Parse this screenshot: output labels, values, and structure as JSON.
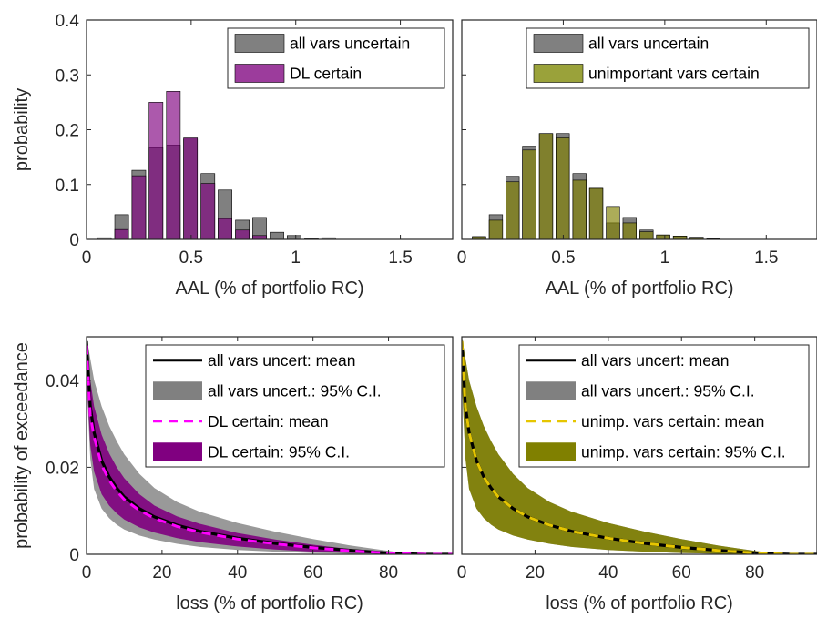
{
  "colors": {
    "gray": "#808080",
    "gray_ci": "#9a9a9a",
    "purple": "#800080",
    "purple_legend": "#9c3c9c",
    "magenta": "#ff00ff",
    "olive": "#808000",
    "olive_legend": "#9aa23a",
    "yellow": "#e6c600",
    "black": "#000000"
  },
  "chart_data": [
    {
      "type": "bar",
      "panel": "top-left",
      "ylabel": "probability",
      "xlabel": "AAL (% of portfolio RC)",
      "xlim": [
        0,
        1.75
      ],
      "ylim": [
        0,
        0.4
      ],
      "xticks": [
        0,
        0.5,
        1,
        1.5
      ],
      "xtick_labels": [
        "0",
        "0.5",
        "1",
        "1.5"
      ],
      "yticks": [
        0,
        0.1,
        0.2,
        0.3,
        0.4
      ],
      "ytick_labels": [
        "0",
        "0.1",
        "0.2",
        "0.3",
        "0.4"
      ],
      "bin_width": 0.066,
      "bin_centers": [
        0.085,
        0.168,
        0.25,
        0.332,
        0.415,
        0.497,
        0.58,
        0.662,
        0.745,
        0.827,
        0.91,
        0.992,
        1.075,
        1.157,
        1.24
      ],
      "series": [
        {
          "name": "all vars uncertain",
          "color": "#808080",
          "values": [
            0.003,
            0.045,
            0.126,
            0.167,
            0.172,
            0.183,
            0.12,
            0.09,
            0.035,
            0.04,
            0.013,
            0.007,
            0.001,
            0.003,
            0.0
          ]
        },
        {
          "name": "DL certain",
          "color": "#800080",
          "values": [
            0.0,
            0.018,
            0.116,
            0.25,
            0.27,
            0.185,
            0.102,
            0.038,
            0.017,
            0.007,
            0.0,
            0.0,
            0.0,
            0.0,
            0.0
          ]
        }
      ],
      "legend": {
        "position": "top-right"
      }
    },
    {
      "type": "bar",
      "panel": "top-right",
      "xlabel": "AAL (% of portfolio RC)",
      "xlim": [
        0,
        1.75
      ],
      "ylim": [
        0,
        0.4
      ],
      "xticks": [
        0,
        0.5,
        1,
        1.5
      ],
      "xtick_labels": [
        "0",
        "0.5",
        "1",
        "1.5"
      ],
      "bin_width": 0.066,
      "bin_centers": [
        0.085,
        0.168,
        0.25,
        0.332,
        0.415,
        0.497,
        0.58,
        0.662,
        0.745,
        0.827,
        0.91,
        0.992,
        1.075,
        1.157,
        1.24
      ],
      "series": [
        {
          "name": "all vars uncertain",
          "color": "#808080",
          "values": [
            0.005,
            0.045,
            0.115,
            0.17,
            0.193,
            0.193,
            0.12,
            0.093,
            0.03,
            0.04,
            0.017,
            0.008,
            0.006,
            0.004,
            0.001
          ]
        },
        {
          "name": "unimportant vars certain",
          "color": "#808000",
          "values": [
            0.005,
            0.035,
            0.105,
            0.163,
            0.193,
            0.185,
            0.108,
            0.093,
            0.06,
            0.03,
            0.014,
            0.008,
            0.006,
            0.002,
            0.001
          ]
        }
      ],
      "legend": {
        "position": "top-right"
      }
    },
    {
      "type": "area",
      "panel": "bottom-left",
      "ylabel": "probability of exceedance",
      "xlabel": "loss (% of portfolio RC)",
      "xlim": [
        0,
        97
      ],
      "ylim": [
        0,
        0.05
      ],
      "xticks": [
        0,
        20,
        40,
        60,
        80
      ],
      "xtick_labels": [
        "0",
        "20",
        "40",
        "60",
        "80"
      ],
      "yticks": [
        0,
        0.02,
        0.04
      ],
      "ytick_labels": [
        "0",
        "0.02",
        "0.04"
      ],
      "x": [
        0,
        1,
        2,
        4,
        6,
        8,
        10,
        14,
        18,
        24,
        30,
        40,
        50,
        60,
        70,
        80,
        85,
        90,
        97
      ],
      "series": [
        {
          "name": "all vars uncert: mean",
          "kind": "line",
          "color": "#000000",
          "values": [
            0.049,
            0.034,
            0.028,
            0.0215,
            0.0178,
            0.0152,
            0.0132,
            0.0105,
            0.0086,
            0.0067,
            0.0053,
            0.0037,
            0.0025,
            0.0016,
            0.0009,
            0.0003,
            0.0001,
            0.0,
            0.0
          ]
        },
        {
          "name": "all vars uncert.: 95% C.I.",
          "kind": "band",
          "color": "#808080",
          "upper": [
            0.05,
            0.045,
            0.04,
            0.034,
            0.0295,
            0.026,
            0.023,
            0.0185,
            0.0152,
            0.012,
            0.0098,
            0.0072,
            0.0052,
            0.0035,
            0.002,
            0.0008,
            0.0003,
            0.0001,
            0.0
          ],
          "lower": [
            0.04,
            0.022,
            0.015,
            0.0105,
            0.0083,
            0.0068,
            0.0057,
            0.0043,
            0.0034,
            0.0024,
            0.0017,
            0.001,
            0.0006,
            0.0003,
            0.0001,
            0.0,
            0.0,
            0.0,
            0.0
          ]
        },
        {
          "name": "DL certain: mean",
          "kind": "dashed",
          "color": "#ff00ff",
          "values": [
            0.048,
            0.032,
            0.027,
            0.0205,
            0.017,
            0.0145,
            0.0126,
            0.0101,
            0.0083,
            0.0064,
            0.0051,
            0.0035,
            0.0024,
            0.0015,
            0.0008,
            0.0003,
            0.0001,
            0.0,
            0.0
          ]
        },
        {
          "name": "DL certain: 95% C.I.",
          "kind": "band",
          "color": "#800080",
          "upper": [
            0.049,
            0.04,
            0.034,
            0.0275,
            0.0232,
            0.02,
            0.0175,
            0.0138,
            0.0112,
            0.0087,
            0.007,
            0.0049,
            0.0034,
            0.0022,
            0.0012,
            0.0005,
            0.0002,
            0.0001,
            0.0
          ],
          "lower": [
            0.041,
            0.025,
            0.019,
            0.0138,
            0.0112,
            0.0094,
            0.008,
            0.0062,
            0.005,
            0.0037,
            0.0028,
            0.0018,
            0.0011,
            0.0006,
            0.0003,
            0.0001,
            0.0,
            0.0,
            0.0
          ]
        }
      ],
      "legend": {
        "position": "top-right"
      }
    },
    {
      "type": "area",
      "panel": "bottom-right",
      "xlabel": "loss (% of portfolio RC)",
      "xlim": [
        0,
        97
      ],
      "ylim": [
        0,
        0.05
      ],
      "xticks": [
        0,
        20,
        40,
        60,
        80
      ],
      "xtick_labels": [
        "0",
        "20",
        "40",
        "60",
        "80"
      ],
      "x": [
        0,
        1,
        2,
        4,
        6,
        8,
        10,
        14,
        18,
        24,
        30,
        40,
        50,
        60,
        70,
        80,
        85,
        90,
        97
      ],
      "series": [
        {
          "name": "all vars uncert: mean",
          "kind": "line",
          "color": "#000000",
          "values": [
            0.049,
            0.034,
            0.028,
            0.0215,
            0.0178,
            0.0152,
            0.0132,
            0.0105,
            0.0086,
            0.0067,
            0.0053,
            0.0037,
            0.0025,
            0.0016,
            0.0009,
            0.0003,
            0.0001,
            0.0,
            0.0
          ]
        },
        {
          "name": "all vars uncert.: 95% C.I.",
          "kind": "band",
          "color": "#808080",
          "upper": [
            0.05,
            0.045,
            0.04,
            0.034,
            0.0295,
            0.026,
            0.023,
            0.0185,
            0.0152,
            0.012,
            0.0098,
            0.0072,
            0.0052,
            0.0035,
            0.002,
            0.0008,
            0.0003,
            0.0001,
            0.0
          ],
          "lower": [
            0.04,
            0.022,
            0.015,
            0.0105,
            0.0083,
            0.0068,
            0.0057,
            0.0043,
            0.0034,
            0.0024,
            0.0017,
            0.001,
            0.0006,
            0.0003,
            0.0001,
            0.0,
            0.0,
            0.0,
            0.0
          ]
        },
        {
          "name": "unimp. vars certain: mean",
          "kind": "dashed",
          "color": "#e6c600",
          "values": [
            0.049,
            0.034,
            0.028,
            0.0215,
            0.0178,
            0.0152,
            0.0132,
            0.0105,
            0.0086,
            0.0067,
            0.0053,
            0.0037,
            0.0025,
            0.0016,
            0.0009,
            0.0003,
            0.0001,
            0.0,
            0.0
          ]
        },
        {
          "name": "unimp. vars certain: 95% C.I.",
          "kind": "band",
          "color": "#808000",
          "upper": [
            0.05,
            0.045,
            0.04,
            0.034,
            0.0295,
            0.026,
            0.023,
            0.0185,
            0.0152,
            0.012,
            0.0098,
            0.0072,
            0.0052,
            0.0035,
            0.002,
            0.0008,
            0.0003,
            0.0001,
            0.0
          ],
          "lower": [
            0.04,
            0.022,
            0.015,
            0.0105,
            0.0083,
            0.0068,
            0.0057,
            0.0043,
            0.0034,
            0.0024,
            0.0017,
            0.001,
            0.0006,
            0.0003,
            0.0001,
            0.0,
            0.0,
            0.0,
            0.0
          ]
        }
      ],
      "legend": {
        "position": "top-right"
      }
    }
  ]
}
